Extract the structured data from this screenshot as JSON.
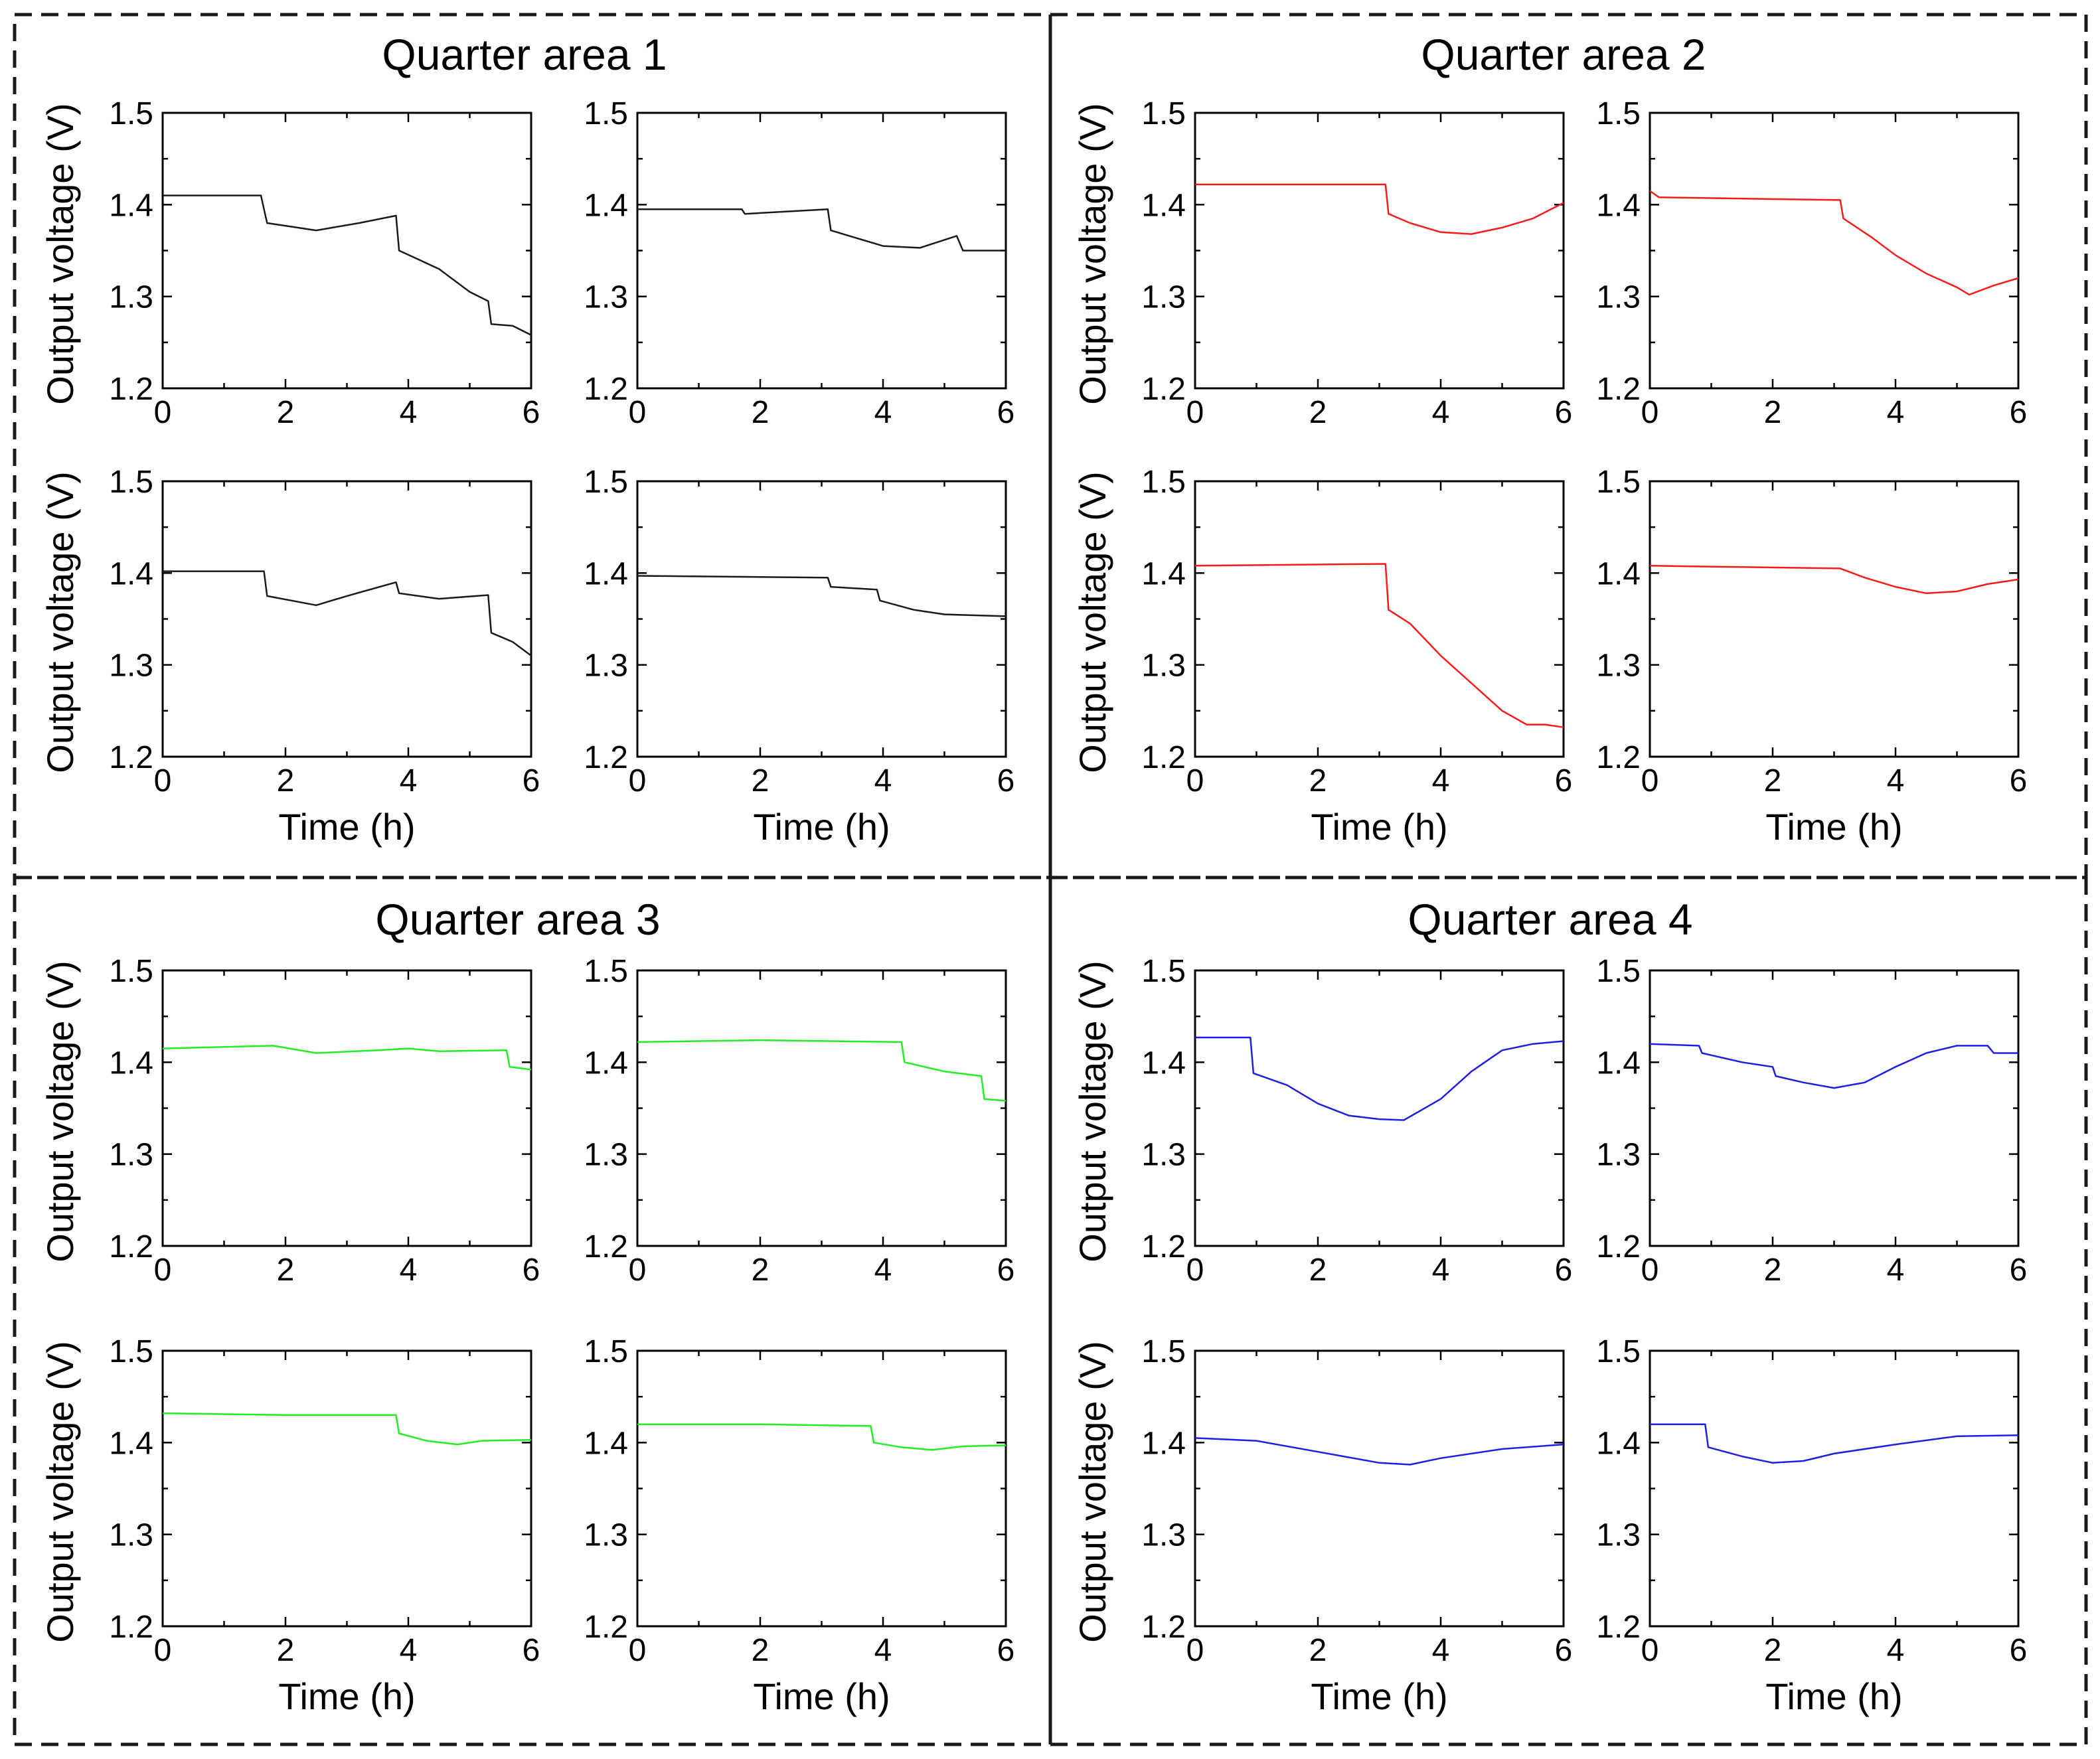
{
  "colors": {
    "black": "#1a1a1a",
    "red": "#ff1a1a",
    "green": "#22ee22",
    "blue": "#1e1ee6"
  },
  "labels": {
    "xlabel": "Time (h)",
    "ylabel": "Output voltage (V)"
  },
  "axes": {
    "xlim": [
      0,
      6
    ],
    "ylim": [
      1.2,
      1.5
    ],
    "xticks": [
      0,
      2,
      4,
      6
    ],
    "yticks": [
      1.2,
      1.3,
      1.4,
      1.5
    ],
    "xticklabels": [
      "0",
      "2",
      "4",
      "6"
    ],
    "yticklabels": [
      "1.2",
      "1.3",
      "1.4",
      "1.5"
    ]
  },
  "quarters": [
    {
      "title": "Quarter area 1"
    },
    {
      "title": "Quarter area 2"
    },
    {
      "title": "Quarter area 3"
    },
    {
      "title": "Quarter area 4"
    }
  ],
  "chart_data": [
    {
      "type": "line",
      "panel": "Quarter area 1 - top left",
      "color": "black",
      "xlim": [
        0,
        6
      ],
      "ylim": [
        1.2,
        1.5
      ],
      "x": [
        0,
        1.6,
        1.7,
        2.5,
        3.2,
        3.8,
        3.85,
        4.5,
        5.0,
        5.3,
        5.35,
        5.7,
        6.0
      ],
      "y": [
        1.41,
        1.41,
        1.38,
        1.372,
        1.38,
        1.388,
        1.35,
        1.33,
        1.305,
        1.295,
        1.27,
        1.268,
        1.258
      ]
    },
    {
      "type": "line",
      "panel": "Quarter area 1 - top right",
      "color": "black",
      "xlim": [
        0,
        6
      ],
      "ylim": [
        1.2,
        1.5
      ],
      "x": [
        0,
        1.7,
        1.75,
        3.1,
        3.15,
        4.0,
        4.6,
        5.2,
        5.3,
        6.0
      ],
      "y": [
        1.395,
        1.395,
        1.39,
        1.395,
        1.372,
        1.355,
        1.353,
        1.366,
        1.35,
        1.35
      ]
    },
    {
      "type": "line",
      "panel": "Quarter area 1 - bottom left",
      "color": "black",
      "xlim": [
        0,
        6
      ],
      "ylim": [
        1.2,
        1.5
      ],
      "x": [
        0,
        1.65,
        1.7,
        2.5,
        3.0,
        3.8,
        3.85,
        4.5,
        5.3,
        5.35,
        5.7,
        6.0
      ],
      "y": [
        1.402,
        1.402,
        1.375,
        1.365,
        1.375,
        1.39,
        1.378,
        1.372,
        1.376,
        1.335,
        1.325,
        1.31
      ]
    },
    {
      "type": "line",
      "panel": "Quarter area 1 - bottom right",
      "color": "black",
      "xlim": [
        0,
        6
      ],
      "ylim": [
        1.2,
        1.5
      ],
      "x": [
        0,
        3.1,
        3.15,
        3.9,
        3.95,
        4.5,
        5.0,
        6.0
      ],
      "y": [
        1.397,
        1.395,
        1.385,
        1.382,
        1.37,
        1.36,
        1.355,
        1.353
      ]
    },
    {
      "type": "line",
      "panel": "Quarter area 2 - top left",
      "color": "red",
      "xlim": [
        0,
        6
      ],
      "ylim": [
        1.2,
        1.5
      ],
      "x": [
        0,
        3.1,
        3.15,
        3.5,
        4.0,
        4.5,
        5.0,
        5.5,
        6.0
      ],
      "y": [
        1.422,
        1.422,
        1.39,
        1.38,
        1.37,
        1.368,
        1.375,
        1.385,
        1.402
      ]
    },
    {
      "type": "line",
      "panel": "Quarter area 2 - top right",
      "color": "red",
      "xlim": [
        0,
        6
      ],
      "ylim": [
        1.2,
        1.5
      ],
      "x": [
        0,
        0.15,
        3.1,
        3.15,
        3.6,
        4.0,
        4.5,
        5.0,
        5.2,
        5.6,
        6.0
      ],
      "y": [
        1.415,
        1.408,
        1.405,
        1.385,
        1.365,
        1.345,
        1.325,
        1.31,
        1.302,
        1.312,
        1.32
      ]
    },
    {
      "type": "line",
      "panel": "Quarter area 2 - bottom left",
      "color": "red",
      "xlim": [
        0,
        6
      ],
      "ylim": [
        1.2,
        1.5
      ],
      "x": [
        0,
        3.1,
        3.15,
        3.5,
        4.0,
        4.5,
        5.0,
        5.4,
        5.7,
        6.0
      ],
      "y": [
        1.408,
        1.41,
        1.36,
        1.345,
        1.31,
        1.28,
        1.25,
        1.235,
        1.235,
        1.232
      ]
    },
    {
      "type": "line",
      "panel": "Quarter area 2 - bottom right",
      "color": "red",
      "xlim": [
        0,
        6
      ],
      "ylim": [
        1.2,
        1.5
      ],
      "x": [
        0,
        3.1,
        3.5,
        4.0,
        4.5,
        5.0,
        5.5,
        6.0
      ],
      "y": [
        1.408,
        1.405,
        1.395,
        1.385,
        1.378,
        1.38,
        1.388,
        1.393
      ]
    },
    {
      "type": "line",
      "panel": "Quarter area 3 - top left",
      "color": "green",
      "xlim": [
        0,
        6
      ],
      "ylim": [
        1.2,
        1.5
      ],
      "x": [
        0,
        1.8,
        2.5,
        3.5,
        4.0,
        4.5,
        5.6,
        5.65,
        6.0
      ],
      "y": [
        1.415,
        1.418,
        1.41,
        1.413,
        1.415,
        1.412,
        1.413,
        1.395,
        1.392
      ]
    },
    {
      "type": "line",
      "panel": "Quarter area 3 - top right",
      "color": "green",
      "xlim": [
        0,
        6
      ],
      "ylim": [
        1.2,
        1.5
      ],
      "x": [
        0,
        2.0,
        4.3,
        4.35,
        5.0,
        5.6,
        5.65,
        6.0
      ],
      "y": [
        1.422,
        1.424,
        1.422,
        1.4,
        1.39,
        1.385,
        1.36,
        1.358
      ]
    },
    {
      "type": "line",
      "panel": "Quarter area 3 - bottom left",
      "color": "green",
      "xlim": [
        0,
        6
      ],
      "ylim": [
        1.2,
        1.5
      ],
      "x": [
        0,
        2.0,
        3.8,
        3.85,
        4.3,
        4.8,
        5.2,
        6.0
      ],
      "y": [
        1.432,
        1.43,
        1.43,
        1.41,
        1.402,
        1.398,
        1.402,
        1.403
      ]
    },
    {
      "type": "line",
      "panel": "Quarter area 3 - bottom right",
      "color": "green",
      "xlim": [
        0,
        6
      ],
      "ylim": [
        1.2,
        1.5
      ],
      "x": [
        0,
        2.0,
        3.8,
        3.85,
        4.3,
        4.8,
        5.3,
        6.0
      ],
      "y": [
        1.42,
        1.42,
        1.418,
        1.4,
        1.395,
        1.392,
        1.396,
        1.397
      ]
    },
    {
      "type": "line",
      "panel": "Quarter area 4 - top left",
      "color": "blue",
      "xlim": [
        0,
        6
      ],
      "ylim": [
        1.2,
        1.5
      ],
      "x": [
        0,
        0.9,
        0.95,
        1.5,
        2.0,
        2.5,
        3.0,
        3.4,
        4.0,
        4.5,
        5.0,
        5.5,
        6.0
      ],
      "y": [
        1.427,
        1.427,
        1.388,
        1.375,
        1.355,
        1.342,
        1.338,
        1.337,
        1.36,
        1.39,
        1.413,
        1.42,
        1.423
      ]
    },
    {
      "type": "line",
      "panel": "Quarter area 4 - top right",
      "color": "blue",
      "xlim": [
        0,
        6
      ],
      "ylim": [
        1.2,
        1.5
      ],
      "x": [
        0,
        0.8,
        0.85,
        1.5,
        2.0,
        2.05,
        2.5,
        3.0,
        3.5,
        4.0,
        4.5,
        5.0,
        5.5,
        5.6,
        6.0
      ],
      "y": [
        1.42,
        1.418,
        1.41,
        1.4,
        1.395,
        1.385,
        1.378,
        1.372,
        1.378,
        1.395,
        1.41,
        1.418,
        1.418,
        1.41,
        1.41
      ]
    },
    {
      "type": "line",
      "panel": "Quarter area 4 - bottom left",
      "color": "blue",
      "xlim": [
        0,
        6
      ],
      "ylim": [
        1.2,
        1.5
      ],
      "x": [
        0,
        1.0,
        2.0,
        3.0,
        3.5,
        4.0,
        5.0,
        6.0
      ],
      "y": [
        1.405,
        1.402,
        1.39,
        1.378,
        1.376,
        1.383,
        1.393,
        1.398
      ]
    },
    {
      "type": "line",
      "panel": "Quarter area 4 - bottom right",
      "color": "blue",
      "xlim": [
        0,
        6
      ],
      "ylim": [
        1.2,
        1.5
      ],
      "x": [
        0,
        0.9,
        0.95,
        1.5,
        2.0,
        2.5,
        3.0,
        4.0,
        5.0,
        6.0
      ],
      "y": [
        1.42,
        1.42,
        1.395,
        1.385,
        1.378,
        1.38,
        1.388,
        1.398,
        1.407,
        1.408
      ]
    }
  ]
}
